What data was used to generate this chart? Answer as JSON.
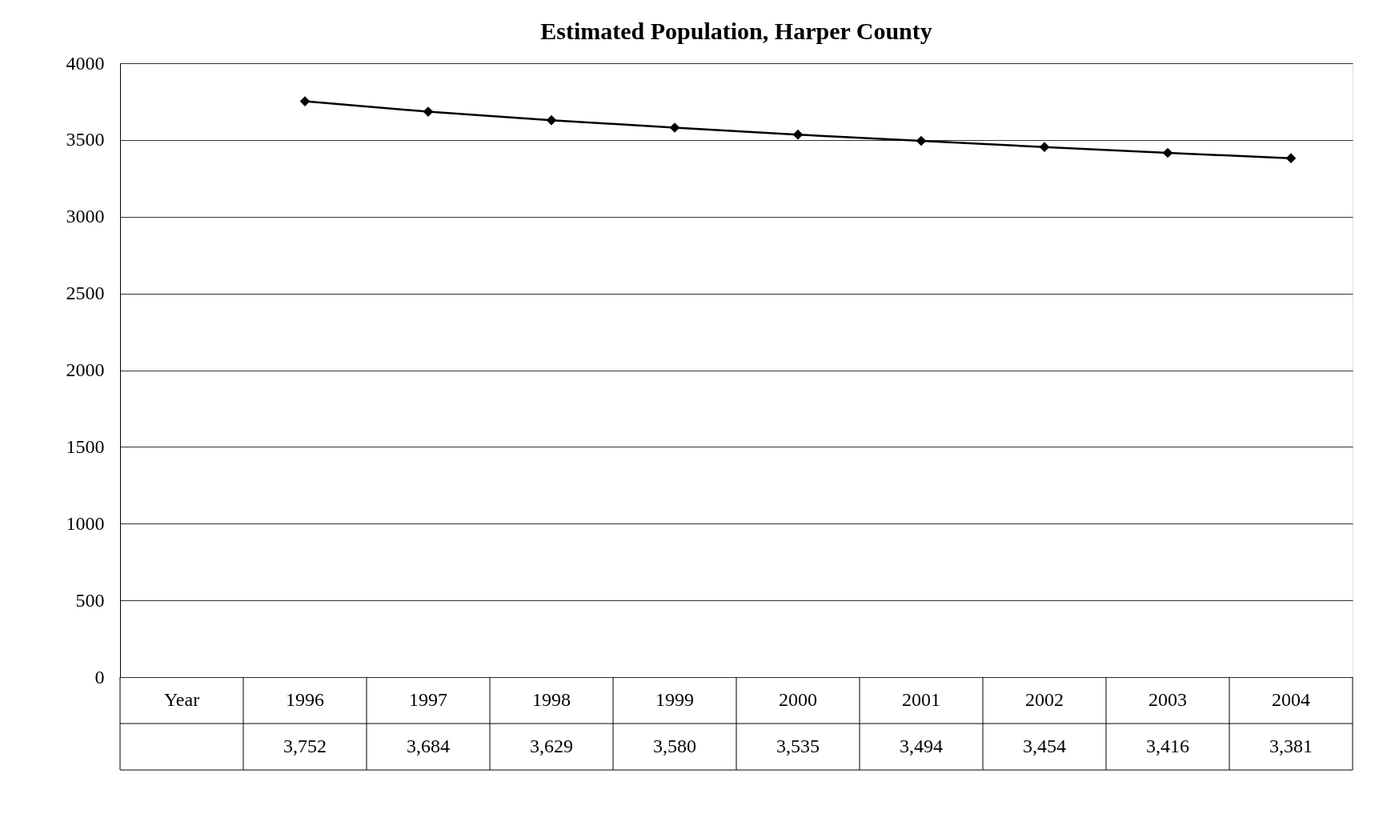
{
  "chart_data": {
    "type": "line",
    "title": "Estimated Population, Harper County",
    "xlabel": "Year",
    "categories": [
      "1996",
      "1997",
      "1998",
      "1999",
      "2000",
      "2001",
      "2002",
      "2003",
      "2004"
    ],
    "series": [
      {
        "color": "#000000",
        "values": [
          3752,
          3684,
          3629,
          3580,
          3535,
          3494,
          3454,
          3416,
          3381
        ],
        "value_labels": [
          "3,752",
          "3,684",
          "3,629",
          "3,580",
          "3,535",
          "3,494",
          "3,454",
          "3,416",
          "3,381"
        ]
      }
    ],
    "ylim": [
      0,
      4000
    ],
    "yticks": [
      0,
      500,
      1000,
      1500,
      2000,
      2500,
      3000,
      3500,
      4000
    ],
    "grid": "y",
    "marker": "diamond",
    "line_style": "solid"
  }
}
